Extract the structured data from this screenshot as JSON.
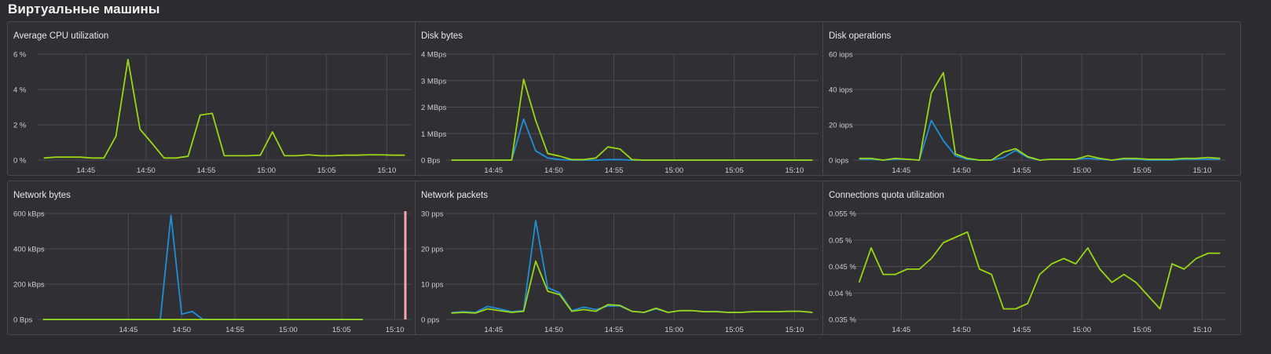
{
  "page": {
    "title": "Виртуальные машины"
  },
  "colors": {
    "background": "#2b2b30",
    "panel": "#2f2f34",
    "grid": "#4a4a50",
    "green": "#9bd615",
    "blue": "#1f8fd6",
    "marker": "#f4a7a7"
  },
  "chart_data": [
    {
      "type": "line",
      "title": "Average CPU utilization",
      "x": [
        0,
        1,
        2,
        3,
        4,
        5,
        6,
        7,
        8,
        9,
        10,
        11,
        12,
        13,
        14,
        15,
        16,
        17,
        18,
        19,
        20,
        21,
        22,
        23,
        24,
        25,
        26,
        27,
        28,
        29,
        30
      ],
      "xticks": [
        {
          "pos": 3.5,
          "label": "14:45"
        },
        {
          "pos": 8.5,
          "label": "14:50"
        },
        {
          "pos": 13.5,
          "label": "14:55"
        },
        {
          "pos": 18.5,
          "label": "15:00"
        },
        {
          "pos": 23.5,
          "label": "15:05"
        },
        {
          "pos": 28.5,
          "label": "15:10"
        }
      ],
      "xlim": [
        -0.5,
        30.5
      ],
      "ylim": [
        0,
        6
      ],
      "yticks": [
        {
          "v": 0,
          "label": "0 %"
        },
        {
          "v": 2,
          "label": "2 %"
        },
        {
          "v": 4,
          "label": "4 %"
        },
        {
          "v": 6,
          "label": "6 %"
        }
      ],
      "grid": true,
      "series": [
        {
          "color": "#9bd615",
          "values": [
            0.12,
            0.17,
            0.17,
            0.17,
            0.12,
            0.12,
            1.35,
            5.7,
            1.75,
            0.95,
            0.12,
            0.12,
            0.22,
            2.55,
            2.65,
            0.25,
            0.25,
            0.25,
            0.28,
            1.6,
            0.25,
            0.25,
            0.3,
            0.25,
            0.25,
            0.28,
            0.28,
            0.3,
            0.3,
            0.28,
            0.28
          ]
        }
      ]
    },
    {
      "type": "line",
      "title": "Disk bytes",
      "x": [
        0,
        1,
        2,
        3,
        4,
        5,
        6,
        7,
        8,
        9,
        10,
        11,
        12,
        13,
        14,
        15,
        16,
        17,
        18,
        19,
        20,
        21,
        22,
        23,
        24,
        25,
        26,
        27,
        28,
        29,
        30
      ],
      "xticks": [
        {
          "pos": 3.5,
          "label": "14:45"
        },
        {
          "pos": 8.5,
          "label": "14:50"
        },
        {
          "pos": 13.5,
          "label": "14:55"
        },
        {
          "pos": 18.5,
          "label": "15:00"
        },
        {
          "pos": 23.5,
          "label": "15:05"
        },
        {
          "pos": 28.5,
          "label": "15:10"
        }
      ],
      "xlim": [
        -0.5,
        30.5
      ],
      "ylim": [
        0,
        4
      ],
      "yticks": [
        {
          "v": 0,
          "label": "0 Bps"
        },
        {
          "v": 1,
          "label": "1 MBps"
        },
        {
          "v": 2,
          "label": "2 MBps"
        },
        {
          "v": 3,
          "label": "3 MBps"
        },
        {
          "v": 4,
          "label": "4 MBps"
        }
      ],
      "grid": true,
      "series": [
        {
          "color": "#1f8fd6",
          "values": [
            0,
            0,
            0,
            0,
            0,
            0,
            1.55,
            0.35,
            0.08,
            0.02,
            0,
            0,
            0,
            0.02,
            0.02,
            0,
            0,
            0,
            0,
            0,
            0,
            0,
            0,
            0,
            0,
            0,
            0,
            0,
            0,
            0,
            0
          ]
        },
        {
          "color": "#9bd615",
          "values": [
            0,
            0,
            0,
            0,
            0,
            0,
            3.05,
            1.5,
            0.25,
            0.15,
            0.02,
            0.02,
            0.08,
            0.5,
            0.42,
            0.02,
            0,
            0,
            0,
            0,
            0,
            0,
            0,
            0,
            0,
            0,
            0,
            0,
            0,
            0,
            0
          ]
        }
      ]
    },
    {
      "type": "line",
      "title": "Disk operations",
      "x": [
        0,
        1,
        2,
        3,
        4,
        5,
        6,
        7,
        8,
        9,
        10,
        11,
        12,
        13,
        14,
        15,
        16,
        17,
        18,
        19,
        20,
        21,
        22,
        23,
        24,
        25,
        26,
        27,
        28,
        29,
        30
      ],
      "xticks": [
        {
          "pos": 3.5,
          "label": "14:45"
        },
        {
          "pos": 8.5,
          "label": "14:50"
        },
        {
          "pos": 13.5,
          "label": "14:55"
        },
        {
          "pos": 18.5,
          "label": "15:00"
        },
        {
          "pos": 23.5,
          "label": "15:05"
        },
        {
          "pos": 28.5,
          "label": "15:10"
        }
      ],
      "xlim": [
        -0.5,
        30.5
      ],
      "ylim": [
        0,
        60
      ],
      "yticks": [
        {
          "v": 0,
          "label": "0 iops"
        },
        {
          "v": 20,
          "label": "20 iops"
        },
        {
          "v": 40,
          "label": "40 iops"
        },
        {
          "v": 60,
          "label": "60 iops"
        }
      ],
      "grid": true,
      "series": [
        {
          "color": "#1f8fd6",
          "values": [
            0.5,
            0.5,
            0,
            0.5,
            0.5,
            0,
            22.5,
            11,
            2.5,
            0.5,
            0,
            0,
            1.5,
            5.5,
            1.5,
            0,
            0.5,
            0.5,
            0.5,
            1,
            0.5,
            0,
            0.5,
            0.5,
            0,
            0,
            0,
            0.5,
            0.5,
            0.5,
            0.5
          ]
        },
        {
          "color": "#9bd615",
          "values": [
            1,
            1,
            0,
            1,
            0.5,
            0,
            38,
            49.5,
            3.5,
            1,
            0,
            0,
            4.5,
            6.5,
            2,
            0,
            0.5,
            0.5,
            0.5,
            2.5,
            1,
            0,
            1,
            1,
            0.5,
            0.5,
            0.5,
            1,
            1,
            1.5,
            1
          ]
        }
      ]
    },
    {
      "type": "line",
      "title": "Network bytes",
      "x": [
        0,
        1,
        2,
        3,
        4,
        5,
        6,
        7,
        8,
        9,
        10,
        11,
        12,
        13,
        14,
        15,
        16,
        17,
        18,
        19,
        20,
        21,
        22,
        23,
        24,
        25,
        26,
        27,
        28,
        29,
        30
      ],
      "xticks": [
        {
          "pos": 8,
          "label": "14:45"
        },
        {
          "pos": 13,
          "label": "14:50"
        },
        {
          "pos": 18,
          "label": "14:55"
        },
        {
          "pos": 23,
          "label": "15:00"
        },
        {
          "pos": 28,
          "label": "15:05"
        },
        {
          "pos": 33,
          "label": "15:10"
        }
      ],
      "xlim": [
        -0.5,
        34.5
      ],
      "ylim": [
        0,
        600
      ],
      "yticks": [
        {
          "v": 0,
          "label": "0 Bps"
        },
        {
          "v": 200,
          "label": "200 kBps"
        },
        {
          "v": 400,
          "label": "400 kBps"
        },
        {
          "v": 600,
          "label": "600 kBps"
        }
      ],
      "grid": true,
      "series": [
        {
          "color": "#1f8fd6",
          "values": [
            0,
            0,
            0,
            0,
            0,
            0,
            0,
            0,
            0,
            0,
            0,
            0,
            590,
            30,
            45,
            0,
            0,
            0,
            0,
            0,
            0,
            0,
            0,
            0,
            0,
            0,
            0,
            0,
            0,
            0,
            0
          ]
        },
        {
          "color": "#9bd615",
          "values": [
            0,
            0,
            0,
            0,
            0,
            0,
            0,
            0,
            0,
            0,
            0,
            0,
            0,
            0,
            0,
            0,
            0,
            0,
            0,
            0,
            0,
            0,
            0,
            0,
            0,
            0,
            0,
            0,
            0,
            0,
            0
          ]
        }
      ]
    },
    {
      "type": "line",
      "title": "Network packets",
      "x": [
        0,
        1,
        2,
        3,
        4,
        5,
        6,
        7,
        8,
        9,
        10,
        11,
        12,
        13,
        14,
        15,
        16,
        17,
        18,
        19,
        20,
        21,
        22,
        23,
        24,
        25,
        26,
        27,
        28,
        29,
        30
      ],
      "xticks": [
        {
          "pos": 3.5,
          "label": "14:45"
        },
        {
          "pos": 8.5,
          "label": "14:50"
        },
        {
          "pos": 13.5,
          "label": "14:55"
        },
        {
          "pos": 18.5,
          "label": "15:00"
        },
        {
          "pos": 23.5,
          "label": "15:05"
        },
        {
          "pos": 28.5,
          "label": "15:10"
        }
      ],
      "xlim": [
        -0.5,
        30.5
      ],
      "ylim": [
        0,
        30
      ],
      "yticks": [
        {
          "v": 0,
          "label": "0 pps"
        },
        {
          "v": 10,
          "label": "10 pps"
        },
        {
          "v": 20,
          "label": "20 pps"
        },
        {
          "v": 30,
          "label": "30 pps"
        }
      ],
      "grid": true,
      "series": [
        {
          "color": "#1f8fd6",
          "values": [
            2,
            2.2,
            2,
            3.7,
            3,
            2.2,
            2.5,
            28,
            9,
            7.5,
            2.5,
            3.5,
            2.8,
            3.8,
            3.8,
            2.3,
            2,
            3,
            2,
            2.5,
            2.5,
            2.2,
            2.3,
            2,
            2,
            2.2,
            2.2,
            2.2,
            2.3,
            2.3,
            2
          ]
        },
        {
          "color": "#9bd615",
          "values": [
            1.8,
            2,
            1.8,
            3,
            2.5,
            2,
            2.3,
            16.5,
            8,
            7,
            2.3,
            2.8,
            2.3,
            4.2,
            4,
            2.3,
            2,
            3.2,
            2,
            2.5,
            2.5,
            2.2,
            2.2,
            2,
            2,
            2.2,
            2.2,
            2.2,
            2.3,
            2.3,
            2
          ]
        }
      ]
    },
    {
      "type": "line",
      "title": "Connections quota utilization",
      "x": [
        0,
        1,
        2,
        3,
        4,
        5,
        6,
        7,
        8,
        9,
        10,
        11,
        12,
        13,
        14,
        15,
        16,
        17,
        18,
        19,
        20,
        21,
        22,
        23,
        24,
        25,
        26,
        27,
        28,
        29,
        30
      ],
      "xticks": [
        {
          "pos": 3.5,
          "label": "14:45"
        },
        {
          "pos": 8.5,
          "label": "14:50"
        },
        {
          "pos": 13.5,
          "label": "14:55"
        },
        {
          "pos": 18.5,
          "label": "15:00"
        },
        {
          "pos": 23.5,
          "label": "15:05"
        },
        {
          "pos": 28.5,
          "label": "15:10"
        }
      ],
      "xlim": [
        -0.5,
        30.5
      ],
      "ylim": [
        0.035,
        0.055
      ],
      "yticks": [
        {
          "v": 0.035,
          "label": "0.035 %"
        },
        {
          "v": 0.04,
          "label": "0.04 %"
        },
        {
          "v": 0.045,
          "label": "0.045 %"
        },
        {
          "v": 0.05,
          "label": "0.05 %"
        },
        {
          "v": 0.055,
          "label": "0.055 %"
        }
      ],
      "grid": true,
      "series": [
        {
          "color": "#9bd615",
          "values": [
            0.042,
            0.0485,
            0.0435,
            0.0435,
            0.0445,
            0.0445,
            0.0465,
            0.0495,
            0.0505,
            0.0515,
            0.0445,
            0.0435,
            0.037,
            0.037,
            0.038,
            0.0435,
            0.0455,
            0.0465,
            0.0455,
            0.0485,
            0.0445,
            0.042,
            0.0435,
            0.042,
            0.0395,
            0.037,
            0.0455,
            0.0445,
            0.0465,
            0.0475,
            0.0475
          ]
        }
      ]
    }
  ]
}
